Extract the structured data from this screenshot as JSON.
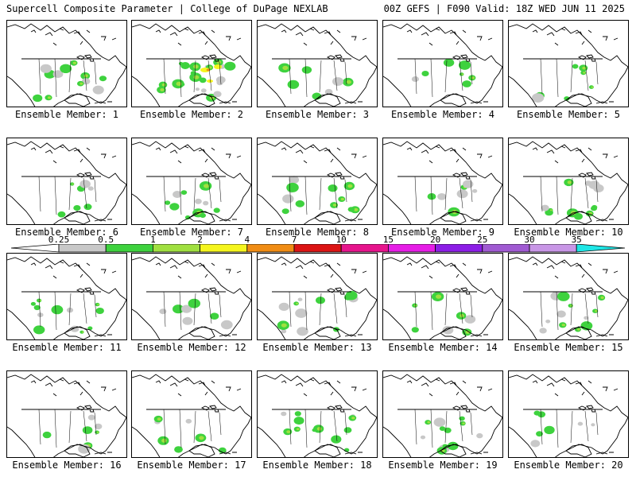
{
  "header": {
    "title": "Supercell Composite Parameter | College of DuPage NEXLAB",
    "run_info": "00Z GEFS | F090 Valid: 18Z WED JUN 11 2025"
  },
  "colors": {
    "gray": "#c8c8c8",
    "green": "#3ed23e",
    "light_green": "#a0e040",
    "yellow": "#f5f51e",
    "orange": "#f08c14",
    "red": "#dc1414",
    "magenta_red": "#e6148c",
    "magenta": "#e61ee6",
    "purple": "#8c1ee6",
    "violet": "#a05ad2",
    "cyan": "#1ee6e6"
  },
  "legend": {
    "ticks": [
      "0.25",
      "0.5",
      "1",
      "2",
      "4",
      "7",
      "10",
      "15",
      "20",
      "25",
      "30",
      "35"
    ],
    "bin_colors": [
      "#c8c8c8",
      "#3ed23e",
      "#a0e040",
      "#f5f51e",
      "#f08c14",
      "#dc1414",
      "#e6148c",
      "#e61ee6",
      "#8c1ee6",
      "#a05ad2",
      "#c896e6",
      "#1ee6e6"
    ]
  },
  "members": [
    {
      "caption": "Ensemble Member: 1",
      "activity": "moderate"
    },
    {
      "caption": "Ensemble Member: 2",
      "activity": "high"
    },
    {
      "caption": "Ensemble Member: 3",
      "activity": "low"
    },
    {
      "caption": "Ensemble Member: 4",
      "activity": "low"
    },
    {
      "caption": "Ensemble Member: 5",
      "activity": "low"
    },
    {
      "caption": "Ensemble Member: 6",
      "activity": "low"
    },
    {
      "caption": "Ensemble Member: 7",
      "activity": "moderate"
    },
    {
      "caption": "Ensemble Member: 8",
      "activity": "moderate"
    },
    {
      "caption": "Ensemble Member: 9",
      "activity": "low"
    },
    {
      "caption": "Ensemble Member: 10",
      "activity": "moderate"
    },
    {
      "caption": "Ensemble Member: 11",
      "activity": "moderate"
    },
    {
      "caption": "Ensemble Member: 12",
      "activity": "low"
    },
    {
      "caption": "Ensemble Member: 13",
      "activity": "moderate"
    },
    {
      "caption": "Ensemble Member: 14",
      "activity": "low"
    },
    {
      "caption": "Ensemble Member: 15",
      "activity": "moderate"
    },
    {
      "caption": "Ensemble Member: 16",
      "activity": "low"
    },
    {
      "caption": "Ensemble Member: 17",
      "activity": "low"
    },
    {
      "caption": "Ensemble Member: 18",
      "activity": "moderate"
    },
    {
      "caption": "Ensemble Member: 19",
      "activity": "moderate"
    },
    {
      "caption": "Ensemble Member: 20",
      "activity": "low"
    }
  ]
}
